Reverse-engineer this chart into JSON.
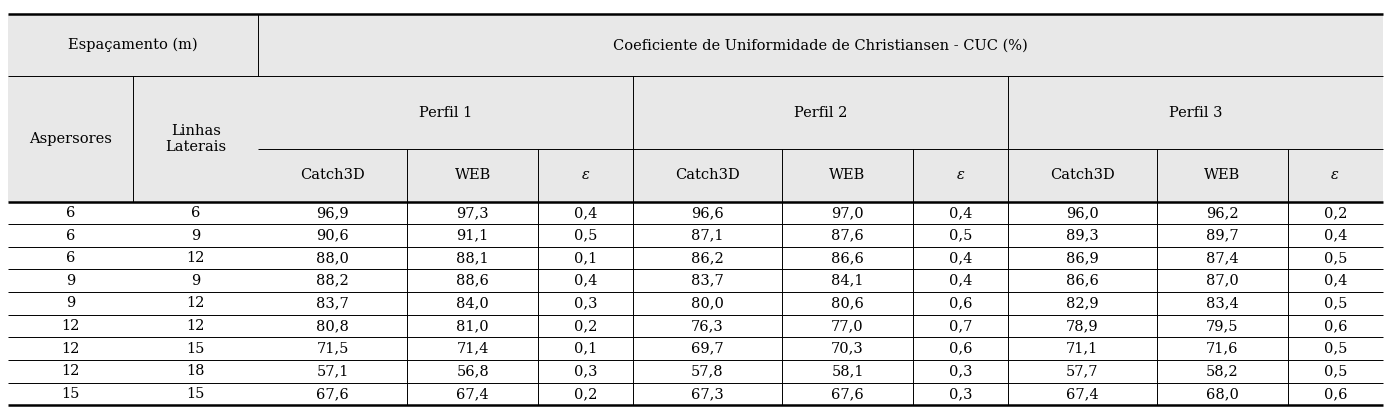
{
  "header1_left": "Espaçamento (m)",
  "header1_right": "Coeficiente de Uniformidade de Christiansen - CUC (%)",
  "col0_header": "Aspersores",
  "col1_header": "Linhas\nLaterais",
  "perfil_labels": [
    "Perfil 1",
    "Perfil 2",
    "Perfil 3"
  ],
  "sub_headers": [
    "Catch3D",
    "WEB",
    "ε"
  ],
  "rows": [
    [
      "6",
      "6",
      "96,9",
      "97,3",
      "0,4",
      "96,6",
      "97,0",
      "0,4",
      "96,0",
      "96,2",
      "0,2"
    ],
    [
      "6",
      "9",
      "90,6",
      "91,1",
      "0,5",
      "87,1",
      "87,6",
      "0,5",
      "89,3",
      "89,7",
      "0,4"
    ],
    [
      "6",
      "12",
      "88,0",
      "88,1",
      "0,1",
      "86,2",
      "86,6",
      "0,4",
      "86,9",
      "87,4",
      "0,5"
    ],
    [
      "9",
      "9",
      "88,2",
      "88,6",
      "0,4",
      "83,7",
      "84,1",
      "0,4",
      "86,6",
      "87,0",
      "0,4"
    ],
    [
      "9",
      "12",
      "83,7",
      "84,0",
      "0,3",
      "80,0",
      "80,6",
      "0,6",
      "82,9",
      "83,4",
      "0,5"
    ],
    [
      "12",
      "12",
      "80,8",
      "81,0",
      "0,2",
      "76,3",
      "77,0",
      "0,7",
      "78,9",
      "79,5",
      "0,6"
    ],
    [
      "12",
      "15",
      "71,5",
      "71,4",
      "0,1",
      "69,7",
      "70,3",
      "0,6",
      "71,1",
      "71,6",
      "0,5"
    ],
    [
      "12",
      "18",
      "57,1",
      "56,8",
      "0,3",
      "57,8",
      "58,1",
      "0,3",
      "57,7",
      "58,2",
      "0,5"
    ],
    [
      "15",
      "15",
      "67,6",
      "67,4",
      "0,2",
      "67,3",
      "67,6",
      "0,3",
      "67,4",
      "68,0",
      "0,6"
    ]
  ],
  "background_color": "#ffffff",
  "header_bg": "#e8e8e8",
  "lw_thick": 1.8,
  "lw_thin": 0.7,
  "font_size": 10.5,
  "header_font_size": 10.5
}
